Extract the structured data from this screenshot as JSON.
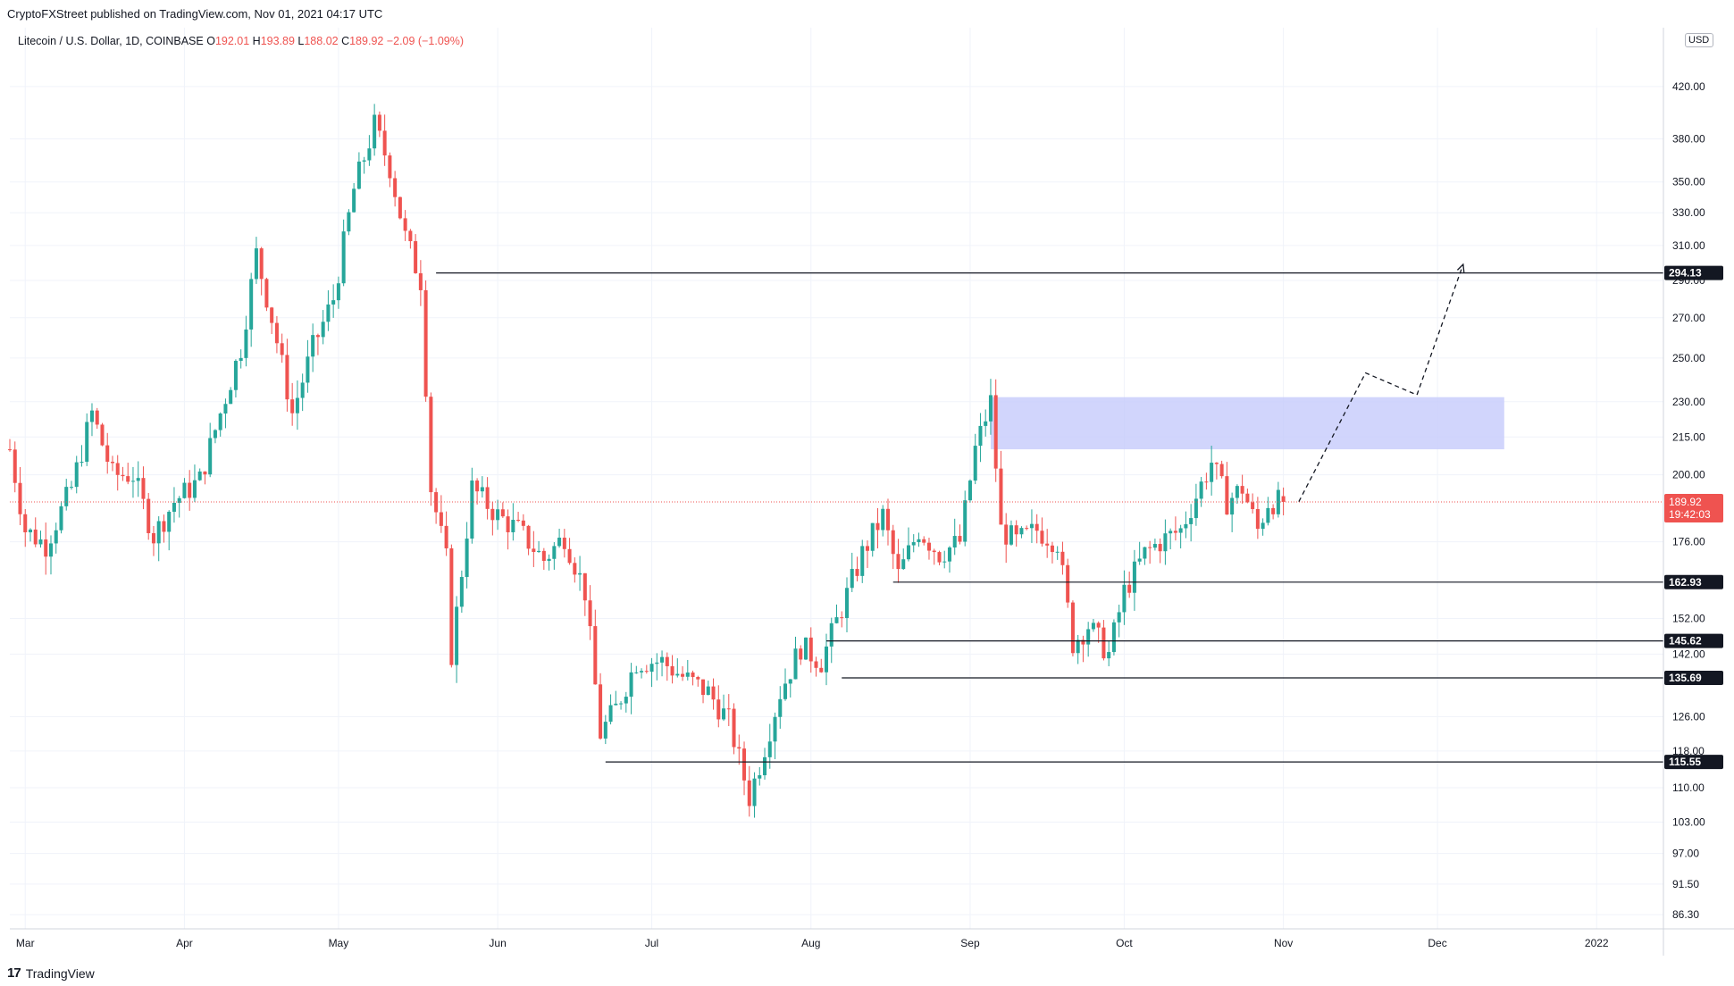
{
  "publisher_line": "CryptoFXStreet published on TradingView.com, Nov 01, 2021 04:17 UTC",
  "legend": {
    "symbol": "Litecoin / U.S. Dollar, 1D, COINBASE",
    "open_label": "O",
    "open": "192.01",
    "high_label": "H",
    "high": "193.89",
    "low_label": "L",
    "low": "188.02",
    "close_label": "C",
    "close": "189.92",
    "change": "−2.09 (−1.09%)"
  },
  "currency": "USD",
  "footer_logo_mark": "17",
  "footer_logo": "TradingView",
  "chart_data": {
    "type": "candlestick",
    "title": "Litecoin / U.S. Dollar, 1D, COINBASE",
    "y_scale": "log",
    "ylim": [
      84,
      470
    ],
    "y_ticks": [
      "420.00",
      "380.00",
      "350.00",
      "330.00",
      "310.00",
      "290.00",
      "270.00",
      "250.00",
      "230.00",
      "215.00",
      "200.00",
      "176.00",
      "152.00",
      "142.00",
      "126.00",
      "118.00",
      "110.00",
      "103.00",
      "97.00",
      "91.50",
      "86.30"
    ],
    "y_ticks_values": [
      420,
      380,
      350,
      330,
      310,
      290,
      270,
      250,
      230,
      215,
      200,
      176,
      152,
      142,
      126,
      118,
      110,
      103,
      97,
      91.5,
      86.3
    ],
    "x_axis": {
      "start_date": "2021-02-26",
      "end_date": "2022-01-14",
      "labels": [
        {
          "text": "Mar",
          "date": "2021-03-01"
        },
        {
          "text": "Apr",
          "date": "2021-04-01"
        },
        {
          "text": "May",
          "date": "2021-05-01"
        },
        {
          "text": "Jun",
          "date": "2021-06-01"
        },
        {
          "text": "Jul",
          "date": "2021-07-01"
        },
        {
          "text": "Aug",
          "date": "2021-08-01"
        },
        {
          "text": "Sep",
          "date": "2021-09-01"
        },
        {
          "text": "Oct",
          "date": "2021-10-01"
        },
        {
          "text": "Nov",
          "date": "2021-11-01"
        },
        {
          "text": "Dec",
          "date": "2021-12-01"
        },
        {
          "text": "2022",
          "date": "2022-01-01"
        }
      ]
    },
    "price_path": [
      {
        "date": "2021-02-26",
        "close": 210
      },
      {
        "date": "2021-03-01",
        "close": 180
      },
      {
        "date": "2021-03-05",
        "close": 175
      },
      {
        "date": "2021-03-10",
        "close": 195
      },
      {
        "date": "2021-03-14",
        "close": 225
      },
      {
        "date": "2021-03-18",
        "close": 200
      },
      {
        "date": "2021-03-22",
        "close": 200
      },
      {
        "date": "2021-03-26",
        "close": 178
      },
      {
        "date": "2021-03-30",
        "close": 190
      },
      {
        "date": "2021-04-04",
        "close": 198
      },
      {
        "date": "2021-04-08",
        "close": 225
      },
      {
        "date": "2021-04-12",
        "close": 255
      },
      {
        "date": "2021-04-15",
        "close": 305
      },
      {
        "date": "2021-04-18",
        "close": 270
      },
      {
        "date": "2021-04-22",
        "close": 225
      },
      {
        "date": "2021-04-26",
        "close": 255
      },
      {
        "date": "2021-04-30",
        "close": 280
      },
      {
        "date": "2021-05-04",
        "close": 345
      },
      {
        "date": "2021-05-08",
        "close": 390
      },
      {
        "date": "2021-05-11",
        "close": 360
      },
      {
        "date": "2021-05-14",
        "close": 315
      },
      {
        "date": "2021-05-17",
        "close": 290
      },
      {
        "date": "2021-05-19",
        "close": 195
      },
      {
        "date": "2021-05-22",
        "close": 170
      },
      {
        "date": "2021-05-23",
        "close": 142
      },
      {
        "date": "2021-05-27",
        "close": 195
      },
      {
        "date": "2021-06-01",
        "close": 185
      },
      {
        "date": "2021-06-05",
        "close": 180
      },
      {
        "date": "2021-06-10",
        "close": 170
      },
      {
        "date": "2021-06-14",
        "close": 178
      },
      {
        "date": "2021-06-18",
        "close": 160
      },
      {
        "date": "2021-06-21",
        "close": 122
      },
      {
        "date": "2021-06-24",
        "close": 128
      },
      {
        "date": "2021-06-28",
        "close": 140
      },
      {
        "date": "2021-07-03",
        "close": 140
      },
      {
        "date": "2021-07-07",
        "close": 136
      },
      {
        "date": "2021-07-12",
        "close": 132
      },
      {
        "date": "2021-07-16",
        "close": 125
      },
      {
        "date": "2021-07-20",
        "close": 108
      },
      {
        "date": "2021-07-22",
        "close": 115
      },
      {
        "date": "2021-07-26",
        "close": 132
      },
      {
        "date": "2021-07-30",
        "close": 144
      },
      {
        "date": "2021-08-03",
        "close": 140
      },
      {
        "date": "2021-08-07",
        "close": 155
      },
      {
        "date": "2021-08-11",
        "close": 172
      },
      {
        "date": "2021-08-15",
        "close": 185
      },
      {
        "date": "2021-08-18",
        "close": 165
      },
      {
        "date": "2021-08-22",
        "close": 180
      },
      {
        "date": "2021-08-26",
        "close": 172
      },
      {
        "date": "2021-08-30",
        "close": 176
      },
      {
        "date": "2021-09-02",
        "close": 210
      },
      {
        "date": "2021-09-05",
        "close": 230
      },
      {
        "date": "2021-09-07",
        "close": 180
      },
      {
        "date": "2021-09-10",
        "close": 176
      },
      {
        "date": "2021-09-14",
        "close": 180
      },
      {
        "date": "2021-09-18",
        "close": 176
      },
      {
        "date": "2021-09-21",
        "close": 145
      },
      {
        "date": "2021-09-24",
        "close": 150
      },
      {
        "date": "2021-09-28",
        "close": 142
      },
      {
        "date": "2021-10-01",
        "close": 160
      },
      {
        "date": "2021-10-05",
        "close": 172
      },
      {
        "date": "2021-10-08",
        "close": 176
      },
      {
        "date": "2021-10-12",
        "close": 180
      },
      {
        "date": "2021-10-15",
        "close": 192
      },
      {
        "date": "2021-10-18",
        "close": 205
      },
      {
        "date": "2021-10-21",
        "close": 190
      },
      {
        "date": "2021-10-24",
        "close": 195
      },
      {
        "date": "2021-10-27",
        "close": 180
      },
      {
        "date": "2021-10-29",
        "close": 190
      },
      {
        "date": "2021-11-01",
        "close": 189.92
      }
    ],
    "support_resistance": [
      {
        "label": "294.13",
        "value": 294.13,
        "start_date": "2021-05-20"
      },
      {
        "label": "162.93",
        "value": 162.93,
        "start_date": "2021-08-17"
      },
      {
        "label": "145.62",
        "value": 145.62,
        "start_date": "2021-08-04"
      },
      {
        "label": "135.69",
        "value": 135.69,
        "start_date": "2021-08-07"
      },
      {
        "label": "115.55",
        "value": 115.55,
        "start_date": "2021-06-22"
      }
    ],
    "last_price": {
      "label": "189.92",
      "value": 189.92,
      "countdown": "19:42:03"
    },
    "supply_zone": {
      "low": 210,
      "high": 232,
      "start_date": "2021-09-05",
      "end_date": "2021-12-14"
    },
    "projection": [
      {
        "date": "2021-11-04",
        "value": 190
      },
      {
        "date": "2021-11-17",
        "value": 243
      },
      {
        "date": "2021-11-27",
        "value": 233
      },
      {
        "date": "2021-12-06",
        "value": 299
      }
    ],
    "colors": {
      "up": "#26a69a",
      "down": "#ef5350",
      "level_line": "#131722",
      "zone": "#c5cbfb",
      "last_price": "#ef5350"
    }
  }
}
